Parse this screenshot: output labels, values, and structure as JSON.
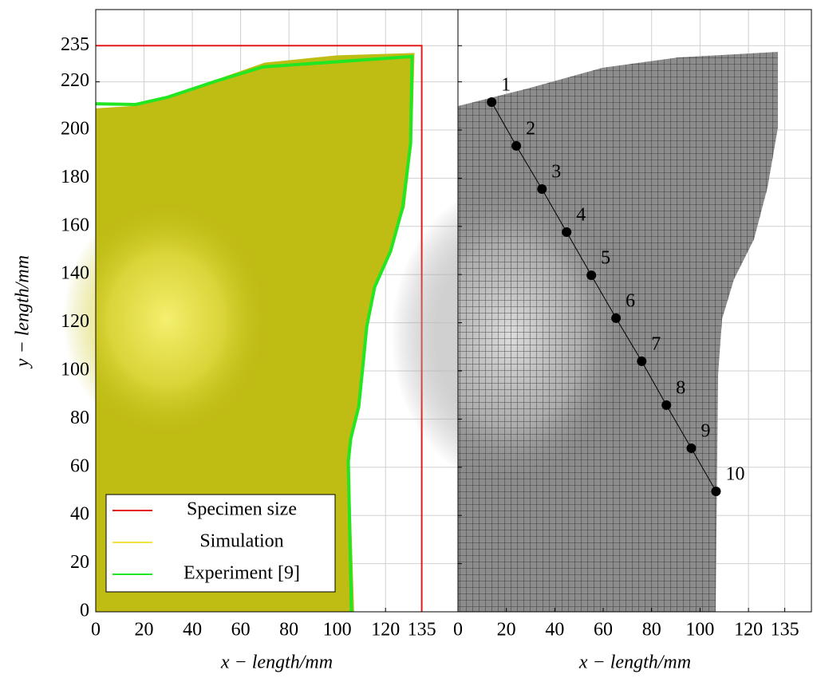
{
  "charts": [
    {
      "type": "line",
      "x_label": "x − length/mm",
      "y_label": "y − length/mm",
      "xlim": [
        0,
        150
      ],
      "ylim": [
        0,
        250
      ],
      "xticks": [
        0,
        20,
        40,
        60,
        80,
        100,
        120,
        135
      ],
      "yticks": [
        0,
        20,
        40,
        60,
        80,
        100,
        120,
        140,
        160,
        180,
        200,
        220,
        235
      ],
      "grid": true,
      "legend": "lower left",
      "series": [
        {
          "name": "Specimen size",
          "color": "#e41a1a",
          "x": [
            0,
            135,
            135
          ],
          "values": [
            235,
            235,
            0
          ]
        },
        {
          "name": "Simulation",
          "color": "#f6e23c",
          "fill": "#bfbc14",
          "x": [
            0,
            16,
            30,
            50,
            70,
            100,
            132,
            131,
            128,
            122,
            116,
            112,
            110,
            109,
            106,
            105,
            107,
            0
          ],
          "values": [
            209,
            210,
            214,
            221,
            228,
            231,
            232,
            195,
            168,
            150,
            135,
            118,
            102,
            85,
            72,
            62,
            0,
            0
          ]
        },
        {
          "name": "Experiment [9]",
          "color": "#22e622",
          "x": [
            0,
            16.5,
            29.7,
            49.5,
            69.3,
            131,
            130.4,
            127.1,
            122.1,
            115.5,
            112.2,
            110.6,
            108.9,
            105.6,
            104.6,
            105.9
          ],
          "values": [
            210.9,
            210.6,
            213.6,
            220.2,
            226.2,
            230.5,
            194.4,
            167.9,
            149.7,
            134.8,
            118.2,
            101.7,
            85.1,
            71.9,
            62.3,
            0
          ]
        }
      ]
    },
    {
      "type": "line",
      "x_label": "x − length/mm",
      "xlim": [
        0,
        146
      ],
      "ylim": [
        0,
        250
      ],
      "xticks": [
        0,
        20,
        40,
        60,
        80,
        100,
        120,
        135
      ],
      "yticks": [
        0,
        20,
        40,
        60,
        80,
        100,
        120,
        140,
        160,
        180,
        200,
        220,
        235
      ],
      "grid": true,
      "color": "#000000",
      "point_labels": [
        "1",
        "2",
        "3",
        "4",
        "5",
        "6",
        "7",
        "8",
        "9",
        "10"
      ],
      "x": [
        13.9,
        24.1,
        34.7,
        44.9,
        55.1,
        65.3,
        75.9,
        86.1,
        96.4,
        106.6
      ],
      "values": [
        211.6,
        193.4,
        175.5,
        157.6,
        139.7,
        121.9,
        104.0,
        85.8,
        67.9,
        50.0
      ]
    }
  ]
}
